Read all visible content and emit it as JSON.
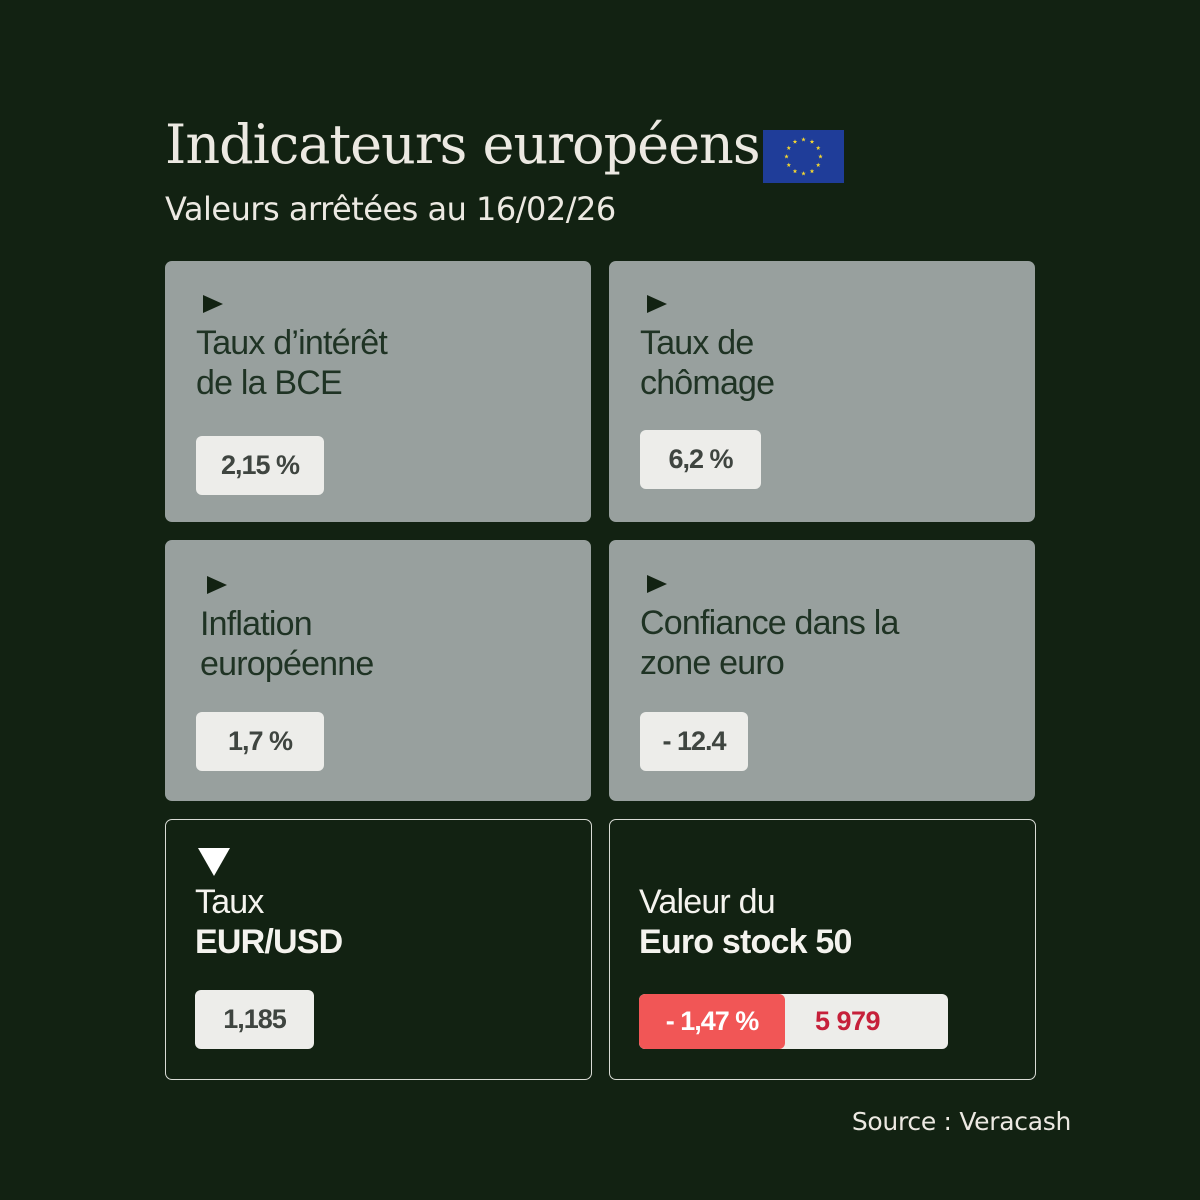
{
  "header": {
    "title": "Indicateurs européens",
    "subtitle": "Valeurs arrêtées au 16/02/26",
    "flag_icon": "eu-flag-icon",
    "flag_colors": {
      "background": "#1f3d99",
      "stars": "#f3d631"
    }
  },
  "cards": {
    "bce_rate": {
      "icon": "play-triangle-icon",
      "label_line1": "Taux d’intérêt",
      "label_line2": "de la BCE",
      "value": "2,15 %"
    },
    "unemployment": {
      "icon": "play-triangle-icon",
      "label_line1": "Taux de",
      "label_line2": "chômage",
      "value": "6,2 %"
    },
    "inflation": {
      "icon": "play-triangle-icon",
      "label_line1": "Inflation",
      "label_line2": "européenne",
      "value": "1,7 %"
    },
    "confidence": {
      "icon": "play-triangle-icon",
      "label_line1": "Confiance dans la",
      "label_line2": "zone euro",
      "value": "- 12.4"
    },
    "eur_usd": {
      "icon": "down-triangle-icon",
      "label_line1": "Taux",
      "label_line2": "EUR/USD",
      "value": "1,185"
    },
    "euro_stoxx": {
      "label_line1": "Valeur du",
      "label_line2": "Euro stock 50",
      "change": "- 1,47 %",
      "value": "5 979"
    }
  },
  "colors": {
    "background": "#122212",
    "card_grey": "#98a09e",
    "negative_badge": "#f15656",
    "negative_text": "#c6203a"
  },
  "footer": {
    "source": "Source : Veracash"
  }
}
